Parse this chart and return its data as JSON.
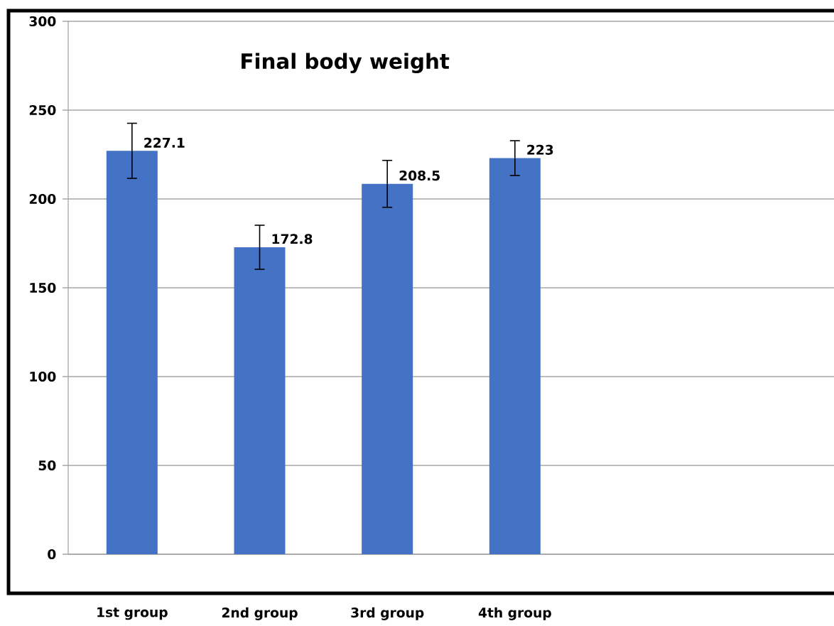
{
  "chart_data": {
    "type": "bar",
    "title": "Final body weight",
    "categories": [
      "1st group",
      "2nd group",
      "3rd group",
      "4th group",
      null,
      null
    ],
    "values": [
      227.1,
      172.8,
      208.5,
      223,
      null,
      null
    ],
    "errors": [
      15.5,
      12.4,
      13.2,
      9.8,
      null,
      null
    ],
    "color": "#4472c4",
    "ylim": [
      0,
      300
    ],
    "yticks": [
      0,
      50,
      100,
      150,
      200,
      250,
      300
    ],
    "grid": "y",
    "data_labels": true
  }
}
